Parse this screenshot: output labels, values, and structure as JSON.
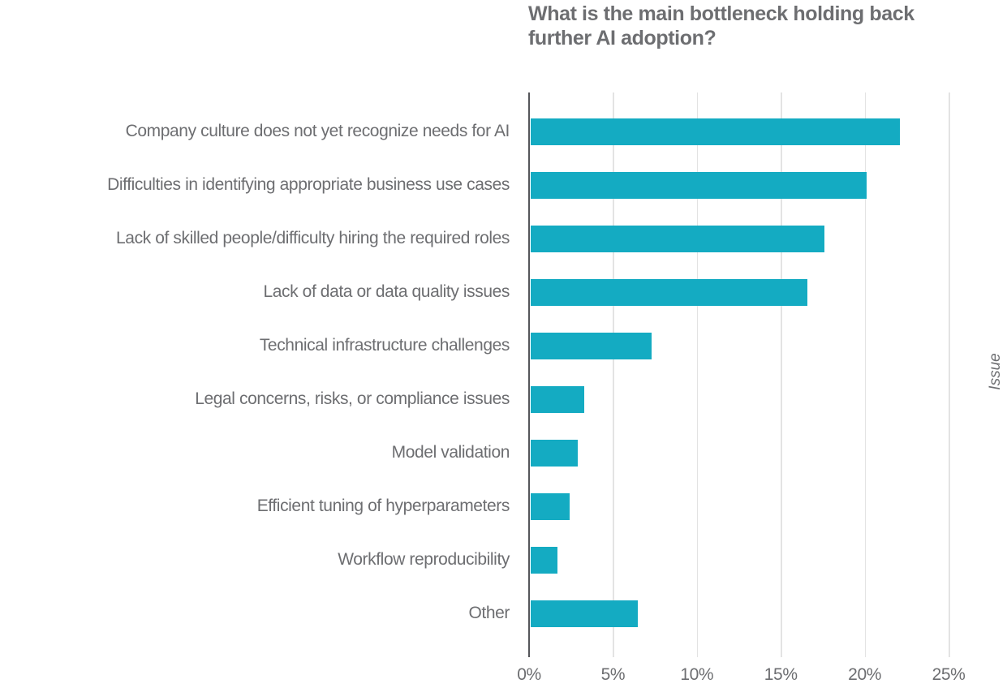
{
  "page": {
    "background": "#ffffff"
  },
  "chart": {
    "title_lines": [
      "What is the main bottleneck holding back",
      "further AI adoption?"
    ],
    "right_axis_label": "Issue"
  },
  "colors": {
    "bar": "#14abc2",
    "text": "#6d6e71",
    "gridline": "#e3e3e3",
    "axis_line": "#55565a"
  },
  "chart_data": {
    "type": "bar",
    "orientation": "horizontal",
    "title": "What is the main bottleneck holding back further AI adoption?",
    "categories": [
      "Company culture does not yet recognize needs for AI",
      "Difficulties in identifying appropriate business use cases",
      "Lack of skilled people/difficulty hiring the required roles",
      "Lack of data or data quality issues",
      "Technical infrastructure challenges",
      "Legal concerns, risks, or compliance issues",
      "Model validation",
      "Efficient tuning of hyperparameters",
      "Workflow reproducibility",
      "Other"
    ],
    "values": [
      22,
      20,
      17.5,
      16.5,
      7.2,
      3.2,
      2.8,
      2.3,
      1.6,
      6.4
    ],
    "unit": "percent of respondents",
    "x_axis": {
      "ticks": [
        0,
        5,
        10,
        15,
        20,
        25
      ],
      "tick_labels": [
        "0%",
        "5%",
        "10%",
        "15%",
        "20%",
        "25%"
      ],
      "range": [
        0,
        26.7
      ]
    },
    "y_axis_right_label": "Issue",
    "grid": "vertical",
    "legend": "none",
    "bar_color": "#14abc2"
  }
}
